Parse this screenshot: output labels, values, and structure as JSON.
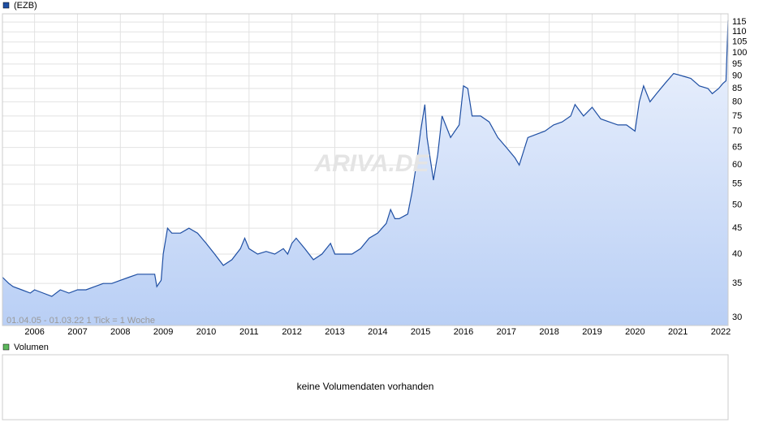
{
  "chart_data": {
    "type": "line",
    "legend": "(EZB)",
    "log_scale": true,
    "grid": true,
    "range_note": "01.04.05 - 01.03.22   1 Tick = 1 Woche",
    "watermark": "ARIVA.DE",
    "xlim": [
      2005.25,
      2022.17
    ],
    "ylim": [
      28.9,
      119.4
    ],
    "xticks": [
      {
        "value": 2006,
        "label": "2006"
      },
      {
        "value": 2007,
        "label": "2007"
      },
      {
        "value": 2008,
        "label": "2008"
      },
      {
        "value": 2009,
        "label": "2009"
      },
      {
        "value": 2010,
        "label": "2010"
      },
      {
        "value": 2011,
        "label": "2011"
      },
      {
        "value": 2012,
        "label": "2012"
      },
      {
        "value": 2013,
        "label": "2013"
      },
      {
        "value": 2014,
        "label": "2014"
      },
      {
        "value": 2015,
        "label": "2015"
      },
      {
        "value": 2016,
        "label": "2016"
      },
      {
        "value": 2017,
        "label": "2017"
      },
      {
        "value": 2018,
        "label": "2018"
      },
      {
        "value": 2019,
        "label": "2019"
      },
      {
        "value": 2020,
        "label": "2020"
      },
      {
        "value": 2021,
        "label": "2021"
      },
      {
        "value": 2022,
        "label": "2022"
      }
    ],
    "yticks": [
      30,
      35,
      40,
      45,
      50,
      55,
      60,
      65,
      70,
      75,
      80,
      85,
      90,
      95,
      100,
      105,
      110,
      115
    ],
    "x": [
      2005.25,
      2005.4,
      2005.5,
      2005.7,
      2005.9,
      2006.0,
      2006.2,
      2006.4,
      2006.6,
      2006.8,
      2007.0,
      2007.2,
      2007.4,
      2007.6,
      2007.8,
      2008.0,
      2008.2,
      2008.4,
      2008.6,
      2008.8,
      2008.85,
      2008.95,
      2009.0,
      2009.1,
      2009.2,
      2009.4,
      2009.6,
      2009.8,
      2010.0,
      2010.2,
      2010.4,
      2010.6,
      2010.8,
      2010.9,
      2011.0,
      2011.2,
      2011.4,
      2011.6,
      2011.8,
      2011.9,
      2012.0,
      2012.1,
      2012.3,
      2012.5,
      2012.7,
      2012.9,
      2013.0,
      2013.2,
      2013.4,
      2013.6,
      2013.8,
      2014.0,
      2014.2,
      2014.3,
      2014.4,
      2014.5,
      2014.7,
      2014.8,
      2014.9,
      2015.0,
      2015.1,
      2015.15,
      2015.3,
      2015.4,
      2015.5,
      2015.7,
      2015.9,
      2016.0,
      2016.1,
      2016.2,
      2016.4,
      2016.6,
      2016.8,
      2017.0,
      2017.2,
      2017.3,
      2017.5,
      2017.7,
      2017.9,
      2018.1,
      2018.3,
      2018.5,
      2018.6,
      2018.8,
      2019.0,
      2019.2,
      2019.4,
      2019.6,
      2019.8,
      2020.0,
      2020.1,
      2020.2,
      2020.35,
      2020.5,
      2020.7,
      2020.9,
      2021.1,
      2021.3,
      2021.5,
      2021.7,
      2021.8,
      2021.95,
      2022.05,
      2022.12,
      2022.17
    ],
    "series": [
      {
        "name": "(EZB)",
        "color": "#1f4fa3",
        "values": [
          36,
          35,
          34.5,
          34,
          33.5,
          34,
          33.5,
          33,
          34,
          33.5,
          34,
          34,
          34.5,
          35,
          35,
          35.5,
          36,
          36.5,
          36.5,
          36.5,
          34.5,
          35.5,
          40,
          45,
          44,
          44,
          45,
          44,
          42,
          40,
          38,
          39,
          41,
          43,
          41,
          40,
          40.5,
          40,
          41,
          40,
          42,
          43,
          41,
          39,
          40,
          42,
          40,
          40,
          40,
          41,
          43,
          44,
          46,
          49,
          47,
          47,
          48,
          53,
          60,
          70,
          79,
          68,
          56,
          63,
          75,
          68,
          72,
          86,
          85,
          75,
          75,
          73,
          68,
          65,
          62,
          60,
          68,
          69,
          70,
          72,
          73,
          75,
          79,
          75,
          78,
          74,
          73,
          72,
          72,
          70,
          80,
          86,
          80,
          83,
          87,
          91,
          90,
          89,
          86,
          85,
          83,
          85,
          87,
          88,
          116
        ]
      }
    ]
  },
  "volume_panel": {
    "legend": "Volumen",
    "message": "keine Volumendaten vorhanden"
  }
}
